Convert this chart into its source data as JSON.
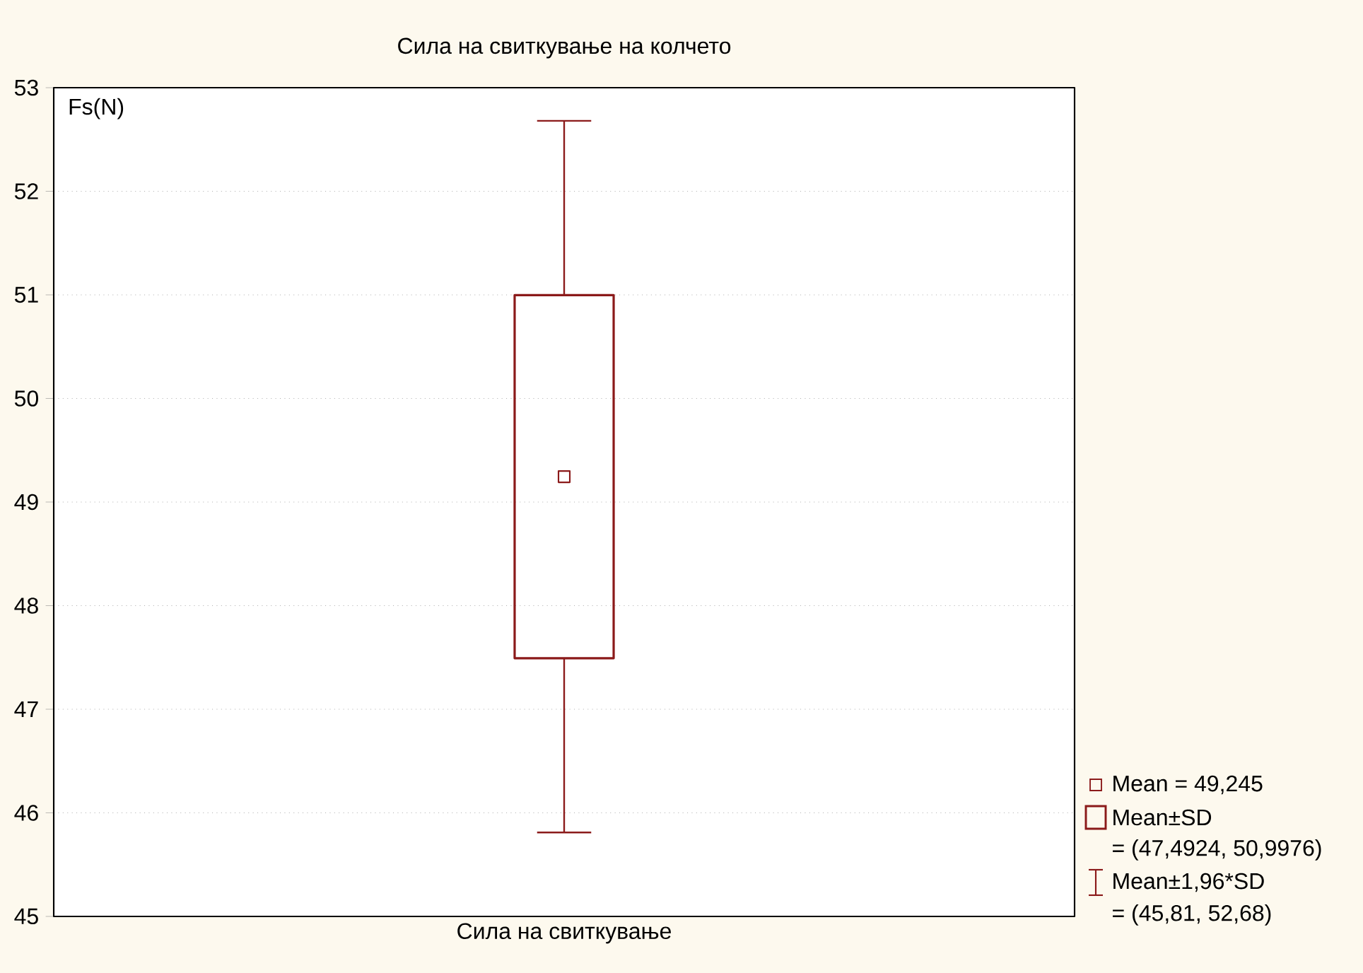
{
  "chart_data": {
    "type": "box",
    "title": "Сила на свиткување на колчето",
    "ylabel": "Fs(N)",
    "categories": [
      "Сила на свиткување"
    ],
    "boxes": [
      {
        "low": 45.81,
        "q1": 47.4924,
        "median": 49.245,
        "q3": 50.9976,
        "high": 52.68
      }
    ],
    "color": "#8b1a1a",
    "ylim": [
      45,
      53
    ],
    "yticks": [
      45,
      46,
      47,
      48,
      49,
      50,
      51,
      52,
      53
    ],
    "grid": "y",
    "annotations": [
      "Mean = 49,245",
      "Mean±SD",
      "= (47,4924, 50,9976)",
      "Mean±1,96*SD",
      "= (45,81, 52,68)"
    ]
  }
}
